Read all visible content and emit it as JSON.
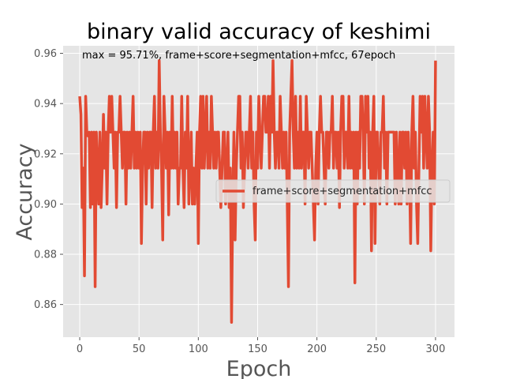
{
  "chart_data": {
    "type": "line",
    "title": "binary valid accuracy of keshimi",
    "xlabel": "Epoch",
    "ylabel": "Accuracy",
    "xlim": [
      -14,
      316
    ],
    "ylim": [
      0.847,
      0.963
    ],
    "xticks": [
      0,
      50,
      100,
      150,
      200,
      250,
      300
    ],
    "yticks": [
      0.86,
      0.88,
      0.9,
      0.92,
      0.94,
      0.96
    ],
    "ytick_labels": [
      "0.86",
      "0.88",
      "0.90",
      "0.92",
      "0.94",
      "0.96"
    ],
    "grid": true,
    "legend_position": "center-right",
    "annotation": "max  = 95.71%, frame+score+segmentation+mfcc, 67epoch",
    "series": [
      {
        "name": "frame+score+segmentation+mfcc",
        "color": "#e24a33",
        "x": [
          0,
          1,
          2,
          3,
          4,
          5,
          6,
          7,
          8,
          9,
          10,
          11,
          12,
          13,
          14,
          15,
          16,
          17,
          18,
          19,
          20,
          21,
          22,
          23,
          24,
          25,
          26,
          27,
          28,
          29,
          30,
          31,
          32,
          33,
          34,
          35,
          36,
          37,
          38,
          39,
          40,
          41,
          42,
          43,
          44,
          45,
          46,
          47,
          48,
          49,
          50,
          51,
          52,
          53,
          54,
          55,
          56,
          57,
          58,
          59,
          60,
          61,
          62,
          63,
          64,
          65,
          66,
          67,
          68,
          69,
          70,
          71,
          72,
          73,
          74,
          75,
          76,
          77,
          78,
          79,
          80,
          81,
          82,
          83,
          84,
          85,
          86,
          87,
          88,
          89,
          90,
          91,
          92,
          93,
          94,
          95,
          96,
          97,
          98,
          99,
          100,
          101,
          102,
          103,
          104,
          105,
          106,
          107,
          108,
          109,
          110,
          111,
          112,
          113,
          114,
          115,
          116,
          117,
          118,
          119,
          120,
          121,
          122,
          123,
          124,
          125,
          126,
          127,
          128,
          129,
          130,
          131,
          132,
          133,
          134,
          135,
          136,
          137,
          138,
          139,
          140,
          141,
          142,
          143,
          144,
          145,
          146,
          147,
          148,
          149,
          150,
          151,
          152,
          153,
          154,
          155,
          156,
          157,
          158,
          159,
          160,
          161,
          162,
          163,
          164,
          165,
          166,
          167,
          168,
          169,
          170,
          171,
          172,
          173,
          174,
          175,
          176,
          177,
          178,
          179,
          180,
          181,
          182,
          183,
          184,
          185,
          186,
          187,
          188,
          189,
          190,
          191,
          192,
          193,
          194,
          195,
          196,
          197,
          198,
          199,
          200,
          201,
          202,
          203,
          204,
          205,
          206,
          207,
          208,
          209,
          210,
          211,
          212,
          213,
          214,
          215,
          216,
          217,
          218,
          219,
          220,
          221,
          222,
          223,
          224,
          225,
          226,
          227,
          228,
          229,
          230,
          231,
          232,
          233,
          234,
          235,
          236,
          237,
          238,
          239,
          240,
          241,
          242,
          243,
          244,
          245,
          246,
          247,
          248,
          249,
          250,
          251,
          252,
          253,
          254,
          255,
          256,
          257,
          258,
          259,
          260,
          261,
          262,
          263,
          264,
          265,
          266,
          267,
          268,
          269,
          270,
          271,
          272,
          273,
          274,
          275,
          276,
          277,
          278,
          279,
          280,
          281,
          282,
          283,
          284,
          285,
          286,
          287,
          288,
          289,
          290,
          291,
          292,
          293,
          294,
          295,
          296,
          297,
          298,
          299,
          300
        ],
        "y": [
          0.9429,
          0.9357,
          0.8986,
          0.9143,
          0.8714,
          0.9429,
          0.9286,
          0.9271,
          0.9286,
          0.8986,
          0.9286,
          0.9,
          0.9286,
          0.8671,
          0.9286,
          0.9143,
          0.9,
          0.9286,
          0.8986,
          0.9143,
          0.9357,
          0.9143,
          0.9286,
          0.9,
          0.9286,
          0.9429,
          0.9286,
          0.9429,
          0.9286,
          0.9143,
          0.9286,
          0.8986,
          0.9286,
          0.9286,
          0.9429,
          0.9286,
          0.9143,
          0.9286,
          0.9286,
          0.9,
          0.9286,
          0.9143,
          0.9286,
          0.9143,
          0.9286,
          0.9429,
          0.9143,
          0.9286,
          0.9143,
          0.9286,
          0.9143,
          0.9286,
          0.8843,
          0.9143,
          0.9286,
          0.9286,
          0.9,
          0.9286,
          0.9143,
          0.9286,
          0.9286,
          0.8986,
          0.9286,
          0.9429,
          0.9143,
          0.9286,
          0.9143,
          0.9571,
          0.9286,
          0.9143,
          0.8857,
          0.9429,
          0.9286,
          0.9143,
          0.9286,
          0.8957,
          0.9286,
          0.9143,
          0.9429,
          0.9143,
          0.9286,
          0.9143,
          0.9286,
          0.9,
          0.9143,
          0.9143,
          0.9429,
          0.9143,
          0.8986,
          0.9286,
          0.9143,
          0.9429,
          0.9,
          0.9143,
          0.9286,
          0.9,
          0.9143,
          0.9,
          0.9143,
          0.9286,
          0.8843,
          0.9286,
          0.9429,
          0.9143,
          0.9429,
          0.9143,
          0.9286,
          0.9429,
          0.9143,
          0.9286,
          0.9143,
          0.9429,
          0.9286,
          0.9143,
          0.9286,
          0.9143,
          0.9286,
          0.9286,
          0.9143,
          0.8986,
          0.9143,
          0.9286,
          0.9286,
          0.9,
          0.9143,
          0.9286,
          0.8986,
          0.9143,
          0.8529,
          0.9,
          0.9286,
          0.8857,
          0.9143,
          0.9286,
          0.9429,
          0.9429,
          0.9143,
          0.9286,
          0.8986,
          0.9143,
          0.9286,
          0.9286,
          0.9143,
          0.9286,
          0.9429,
          0.9143,
          0.9286,
          0.9,
          0.8857,
          0.9286,
          0.9143,
          0.9429,
          0.9286,
          0.9143,
          0.9286,
          0.9429,
          0.9429,
          0.9286,
          0.9286,
          0.9429,
          0.9143,
          0.9429,
          0.9286,
          0.9571,
          0.9286,
          0.9143,
          0.9286,
          0.9286,
          0.9143,
          0.9429,
          0.9286,
          0.9143,
          0.9286,
          0.9143,
          0.9286,
          0.9,
          0.8671,
          0.9286,
          0.9429,
          0.9571,
          0.9286,
          0.9143,
          0.9429,
          0.9143,
          0.9286,
          0.9143,
          0.9429,
          0.9143,
          0.9286,
          0.9286,
          0.9,
          0.9429,
          0.9286,
          0.9143,
          0.9286,
          0.9286,
          0.9143,
          0.9,
          0.8857,
          0.9143,
          0.9286,
          0.9,
          0.9286,
          0.9429,
          0.9286,
          0.9286,
          0.9143,
          0.9,
          0.9286,
          0.9286,
          0.9143,
          0.9286,
          0.9286,
          0.9429,
          0.9143,
          0.9286,
          0.9286,
          0.9143,
          0.9286,
          0.8986,
          0.9286,
          0.9429,
          0.9429,
          0.9143,
          0.9286,
          0.9286,
          0.9143,
          0.9429,
          0.9143,
          0.9286,
          0.9143,
          0.9286,
          0.8686,
          0.9286,
          0.9,
          0.9286,
          0.9143,
          0.9429,
          0.9429,
          0.9286,
          0.9,
          0.9429,
          0.9286,
          0.9429,
          0.9143,
          0.9286,
          0.8814,
          0.9286,
          0.9429,
          0.8843,
          0.9286,
          0.9286,
          0.9143,
          0.9,
          0.9286,
          0.9286,
          0.9429,
          0.9143,
          0.9286,
          0.9,
          0.9286,
          0.9286,
          0.9286,
          0.9286,
          0.9286,
          0.9286,
          0.9,
          0.9286,
          0.9143,
          0.9,
          0.9286,
          0.9,
          0.9286,
          0.9286,
          0.9143,
          0.9286,
          0.9,
          0.9286,
          0.9143,
          0.8843,
          0.9286,
          0.9429,
          0.9143,
          0.9286,
          0.9,
          0.8843,
          0.9143,
          0.9429,
          0.9286,
          0.9429,
          0.9143,
          0.9429,
          0.9286,
          0.9143,
          0.9429,
          0.9286,
          0.8814,
          0.9143,
          0.9286,
          0.9,
          0.9571
        ]
      }
    ]
  }
}
